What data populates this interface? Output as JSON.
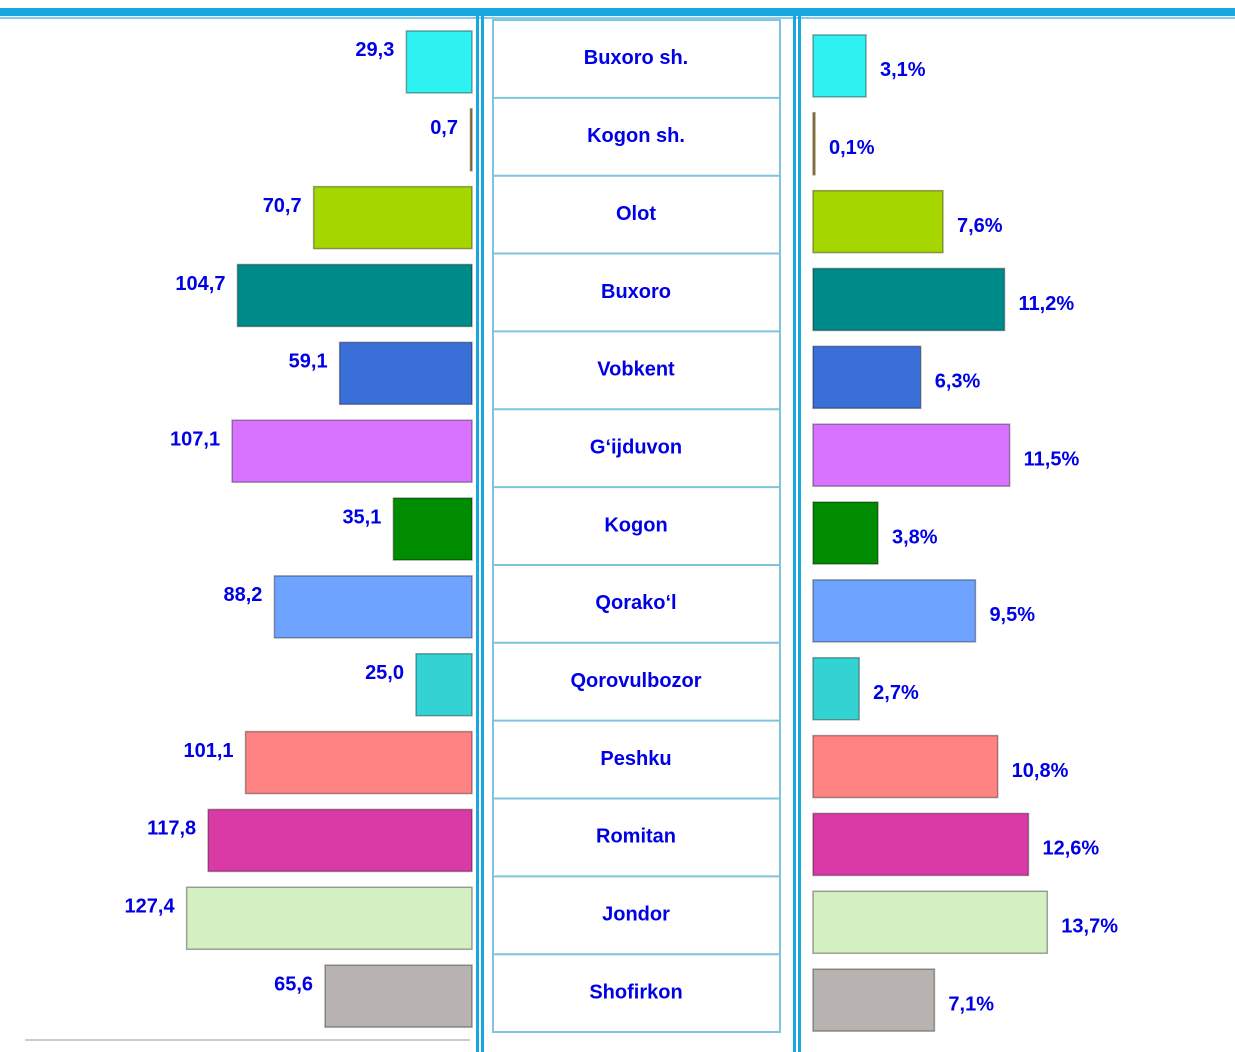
{
  "chart_data": {
    "type": "butterfly-bar",
    "categories": [
      "Buxoro sh.",
      "Kogon sh.",
      "Olot",
      "Buxoro",
      "Vobkent",
      "G‘ijduvon",
      "Kogon",
      "Qorako‘l",
      "Qorovulbozor",
      "Peshku",
      "Romitan",
      "Jondor",
      "Shofirkon"
    ],
    "colors": [
      "#2ef2f2",
      "#b8923a",
      "#a6d600",
      "#008b8b",
      "#3a6fd8",
      "#d873ff",
      "#008c00",
      "#6ea3ff",
      "#33d3d3",
      "#ff8383",
      "#d93aa6",
      "#d4efc2",
      "#b8b2b0"
    ],
    "series": [
      {
        "values": [
          29.3,
          0.7,
          70.7,
          104.7,
          59.1,
          107.1,
          35.1,
          88.2,
          25.0,
          101.1,
          117.8,
          127.4,
          65.6
        ],
        "value_labels": [
          "29,3",
          "0,7",
          "70,7",
          "104,7",
          "59,1",
          "107,1",
          "35,1",
          "88,2",
          "25,0",
          "101,1",
          "117,8",
          "127,4",
          "65,6"
        ]
      },
      {
        "values": [
          3.1,
          0.1,
          7.6,
          11.2,
          6.3,
          11.5,
          3.8,
          9.5,
          2.7,
          10.8,
          12.6,
          13.7,
          7.1
        ],
        "value_labels": [
          "3,1%",
          "0,1%",
          "7,6%",
          "11,2%",
          "6,3%",
          "11,5%",
          "3,8%",
          "9,5%",
          "2,7%",
          "10,8%",
          "12,6%",
          "13,7%",
          "7,1%"
        ]
      }
    ]
  }
}
